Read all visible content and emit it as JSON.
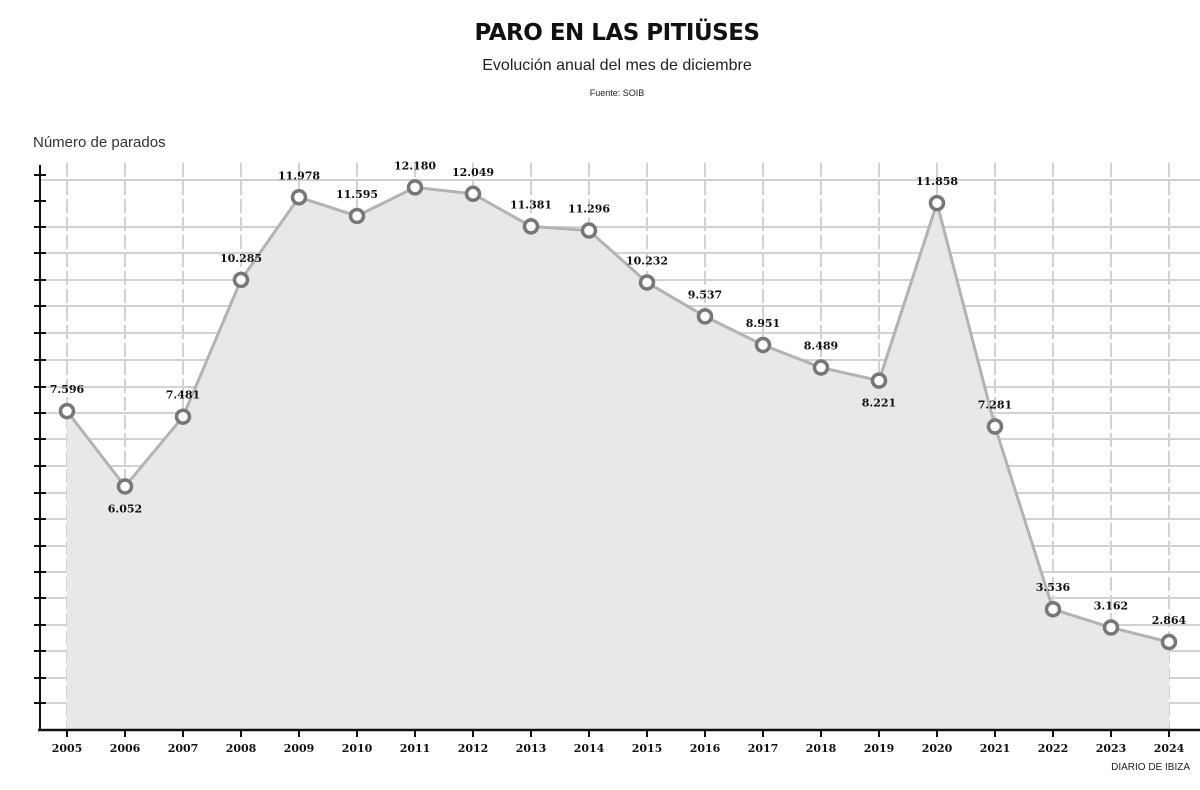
{
  "header": {
    "title": "PARO EN LAS PITIÜSES",
    "subtitle": "Evolución anual del mes de diciembre",
    "source": "Fuente: SOIB"
  },
  "footer": {
    "credit": "DIARIO DE IBIZA"
  },
  "chart_data": {
    "type": "area",
    "title": "PARO EN LAS PITIÜSES",
    "subtitle": "Evolución anual del mes de diciembre",
    "ylabel": "Número de parados",
    "xlabel": "",
    "x": [
      "2005",
      "2006",
      "2007",
      "2008",
      "2009",
      "2010",
      "2011",
      "2012",
      "2013",
      "2014",
      "2015",
      "2016",
      "2017",
      "2018",
      "2019",
      "2020",
      "2021",
      "2022",
      "2023",
      "2024"
    ],
    "values": [
      7596,
      6052,
      7481,
      10285,
      11978,
      11595,
      12180,
      12049,
      11381,
      11296,
      10232,
      9537,
      8951,
      8489,
      8221,
      11858,
      7281,
      3536,
      3162,
      2864
    ],
    "data_labels": [
      "7.596",
      "6.052",
      "7.481",
      "10.285",
      "11.978",
      "11.595",
      "12.180",
      "12.049",
      "11.381",
      "11.296",
      "10.232",
      "9.537",
      "8.951",
      "8.489",
      "8.221",
      "11.858",
      "7.281",
      "3.536",
      "3.162",
      "2.864"
    ],
    "ylim": [
      2000,
      13000
    ],
    "grid": true,
    "colors": {
      "line": "#b3b3b3",
      "area": "#e8e8ea",
      "grid": "#d2d2d2",
      "axis": "#111111",
      "marker_stroke": "#777777"
    }
  }
}
